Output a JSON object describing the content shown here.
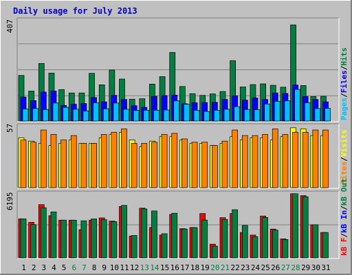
{
  "chart_data": [
    {
      "type": "bar",
      "title": "Daily usage for July 2013",
      "ylabel_max": "407",
      "legend": [
        "Pages",
        "Files",
        "Hits"
      ],
      "categories": [
        "1",
        "2",
        "3",
        "4",
        "5",
        "6",
        "7",
        "8",
        "9",
        "10",
        "11",
        "12",
        "13",
        "14",
        "15",
        "16",
        "17",
        "18",
        "19",
        "20",
        "21",
        "22",
        "23",
        "24",
        "25",
        "26",
        "27",
        "28",
        "29",
        "30",
        "31"
      ],
      "series": [
        {
          "name": "Hits",
          "values": [
            190,
            125,
            240,
            200,
            131,
            117,
            117,
            199,
            151,
            213,
            175,
            91,
            93,
            154,
            185,
            286,
            144,
            114,
            107,
            113,
            123,
            252,
            142,
            152,
            155,
            149,
            141,
            401,
            148,
            102,
            103
          ]
        },
        {
          "name": "Files",
          "values": [
            100,
            85,
            121,
            125,
            65,
            70,
            73,
            98,
            80,
            107,
            90,
            64,
            57,
            103,
            106,
            108,
            72,
            76,
            77,
            78,
            90,
            105,
            87,
            96,
            90,
            117,
            115,
            150,
            102,
            90,
            80
          ]
        },
        {
          "name": "Pages",
          "values": [
            50,
            52,
            48,
            75,
            57,
            49,
            42,
            76,
            51,
            75,
            49,
            44,
            45,
            45,
            46,
            84,
            70,
            45,
            40,
            45,
            49,
            60,
            48,
            47,
            71,
            82,
            84,
            132,
            76,
            52,
            53
          ]
        }
      ]
    },
    {
      "type": "bar",
      "ylabel_max": "57",
      "legend": [
        "Sites",
        "Visits"
      ],
      "categories": [
        "1",
        "2",
        "3",
        "4",
        "5",
        "6",
        "7",
        "8",
        "9",
        "10",
        "11",
        "12",
        "13",
        "14",
        "15",
        "16",
        "17",
        "18",
        "19",
        "20",
        "21",
        "22",
        "23",
        "24",
        "25",
        "26",
        "27",
        "28",
        "29",
        "30",
        "31"
      ],
      "series": [
        {
          "name": "Visits",
          "values": [
            45,
            42,
            40,
            38,
            40,
            43,
            40,
            40,
            45,
            48,
            50,
            43,
            37,
            42,
            46,
            46,
            43,
            40,
            40,
            38,
            40,
            46,
            43,
            45,
            45,
            43,
            46,
            54,
            53,
            47,
            47
          ]
        },
        {
          "name": "Sites",
          "values": [
            43,
            41,
            52,
            48,
            43,
            47,
            40,
            40,
            48,
            50,
            53,
            40,
            40,
            41,
            48,
            49,
            44,
            41,
            41,
            38,
            42,
            52,
            47,
            47,
            48,
            53,
            48,
            50,
            50,
            52,
            52
          ]
        }
      ]
    },
    {
      "type": "bar",
      "ylabel_max": "6195",
      "legend": [
        "kB F",
        "kB In",
        "kB Out"
      ],
      "categories": [
        "1",
        "2",
        "3",
        "4",
        "5",
        "6",
        "7",
        "8",
        "9",
        "10",
        "11",
        "12",
        "13",
        "14",
        "15",
        "16",
        "17",
        "18",
        "19",
        "20",
        "21",
        "22",
        "23",
        "24",
        "25",
        "26",
        "27",
        "28",
        "29",
        "30",
        "31"
      ],
      "series": [
        {
          "name": "kB F",
          "values": [
            3770,
            3430,
            5140,
            4070,
            3640,
            3640,
            2720,
            3640,
            3860,
            3550,
            4960,
            2110,
            4800,
            2930,
            2200,
            4200,
            2820,
            2930,
            4280,
            1320,
            3880,
            4280,
            2450,
            2200,
            4040,
            2780,
            1830,
            6195,
            6010,
            3200,
            2450
          ]
        },
        {
          "name": "kB In",
          "values": [
            0,
            0,
            0,
            0,
            0,
            0,
            0,
            0,
            0,
            0,
            0,
            0,
            0,
            0,
            0,
            0,
            0,
            0,
            0,
            0,
            0,
            0,
            0,
            0,
            0,
            0,
            0,
            0,
            0,
            0,
            0
          ]
        },
        {
          "name": "kB Out",
          "values": [
            3770,
            3210,
            4840,
            4440,
            3640,
            3640,
            3580,
            3760,
            3690,
            3500,
            5070,
            2160,
            4730,
            4530,
            2330,
            4310,
            2780,
            2920,
            3650,
            1130,
            3710,
            4650,
            3130,
            2050,
            3900,
            2680,
            1770,
            6195,
            5900,
            3200,
            2450
          ]
        }
      ]
    }
  ],
  "colors": {
    "background": "#c0c0c0",
    "title": "#0000cc",
    "hits": "#008040",
    "files": "#0000ff",
    "pages": "#00c0ff",
    "visits": "#ffff00",
    "sites": "#ff8000",
    "kbf": "#ff0000",
    "kbin": "#0000ff",
    "kbout": "#008040",
    "weekend": "#008040"
  },
  "weekend_days": [
    "6",
    "7",
    "13",
    "14",
    "20",
    "21",
    "27",
    "28"
  ]
}
